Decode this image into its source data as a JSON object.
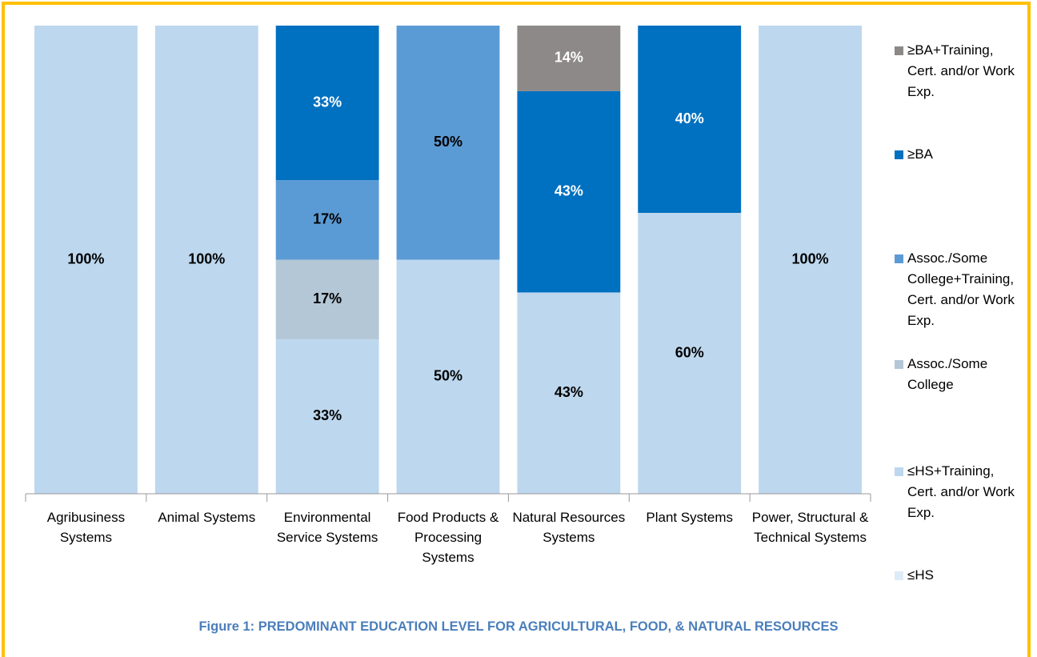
{
  "chart_data": {
    "type": "bar",
    "stacked": true,
    "title": "Figure 1:  PREDOMINANT EDUCATION LEVEL FOR AGRICULTURAL, FOOD, & NATURAL RESOURCES",
    "categories": [
      "Agribusiness Systems",
      "Animal Systems",
      "Environmental Service Systems",
      "Food Products & Processing Systems",
      "Natural Resources Systems",
      "Plant Systems",
      "Power, Structural & Technical Systems"
    ],
    "ylim": [
      0,
      100
    ],
    "series": [
      {
        "name": "≤HS",
        "color": "#ddebf7",
        "values": [
          null,
          null,
          null,
          null,
          null,
          null,
          null
        ],
        "value_labels": [
          null,
          null,
          null,
          null,
          null,
          null,
          null
        ]
      },
      {
        "name": "≤HS+Training, Cert. and/or Work Exp.",
        "color": "#bdd7ee",
        "values": [
          100,
          100,
          33,
          50,
          43,
          60,
          100
        ],
        "value_labels": [
          "100%",
          "100%",
          "33%",
          "50%",
          "43%",
          "60%",
          "100%"
        ]
      },
      {
        "name": "Assoc./Some College",
        "color": "#b4c7d7",
        "values": [
          null,
          null,
          17,
          null,
          null,
          null,
          null
        ],
        "value_labels": [
          null,
          null,
          "17%",
          null,
          null,
          null,
          null
        ]
      },
      {
        "name": "Assoc./Some College+Training, Cert. and/or Work Exp.",
        "color": "#5b9bd5",
        "values": [
          null,
          null,
          17,
          50,
          null,
          null,
          null
        ],
        "value_labels": [
          null,
          null,
          "17%",
          "50%",
          null,
          null,
          null
        ]
      },
      {
        "name": "≥BA",
        "color": "#0070c0",
        "values": [
          null,
          null,
          33,
          null,
          43,
          40,
          null
        ],
        "value_labels": [
          null,
          null,
          "33%",
          null,
          "43%",
          "40%",
          null
        ]
      },
      {
        "name": "≥BA+Training, Cert. and/or Work Exp.",
        "color": "#8c8988",
        "values": [
          null,
          null,
          null,
          null,
          14,
          null,
          null
        ],
        "value_labels": [
          null,
          null,
          null,
          null,
          "14%",
          null,
          null
        ]
      }
    ]
  }
}
